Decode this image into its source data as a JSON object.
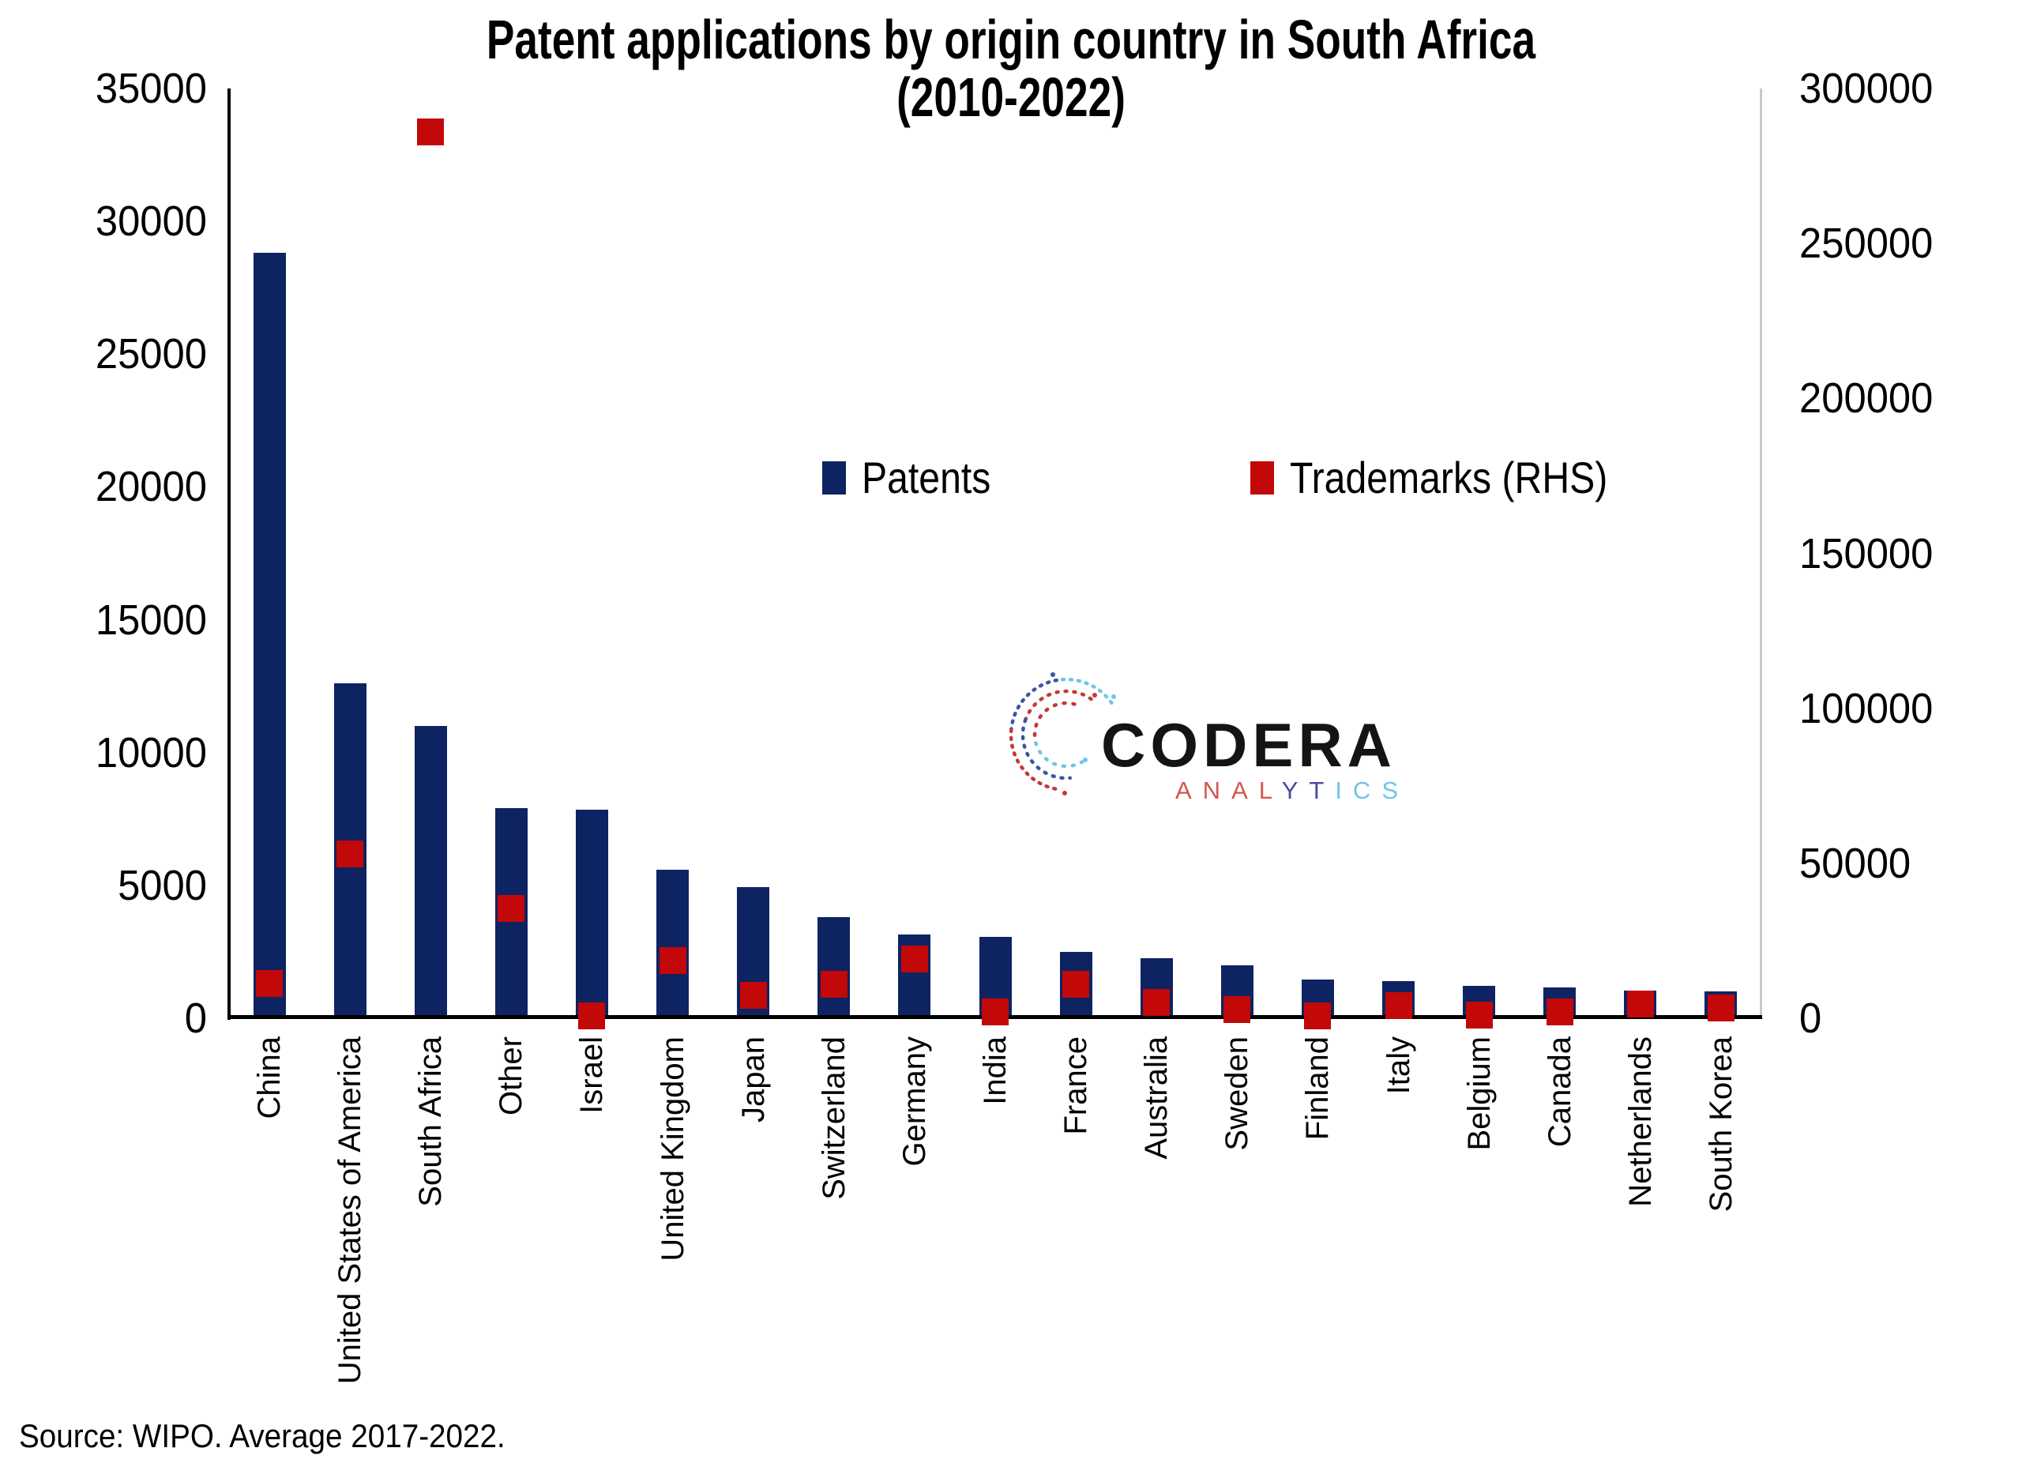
{
  "title": {
    "line1": "Patent applications by origin country in South Africa",
    "line2": "(2010-2022)"
  },
  "legend": {
    "patents_label": "Patents",
    "trademarks_label": "Trademarks (RHS)"
  },
  "source_note": "Source: WIPO. Average 2017-2022.",
  "logo": {
    "name": "CODERA",
    "subtitle_segments": [
      {
        "text": "ANAL",
        "color": "#d4574e"
      },
      {
        "text": "YT",
        "color": "#4549a1"
      },
      {
        "text": "ICS",
        "color": "#6fc5e8"
      }
    ]
  },
  "colors": {
    "patents": "#0e2361",
    "trademarks": "#c20808",
    "axis": "#000000",
    "right_axis_line": "#c9c9c9",
    "text": "#000000"
  },
  "chart_data": {
    "type": "bar",
    "title": "Patent applications by origin country in South Africa (2010-2022)",
    "categories": [
      "China",
      "United States of America",
      "South Africa",
      "Other",
      "Israel",
      "United Kingdom",
      "Japan",
      "Switzerland",
      "Germany",
      "India",
      "France",
      "Australia",
      "Sweden",
      "Finland",
      "Italy",
      "Belgium",
      "Canada",
      "Netherlands",
      "South Korea"
    ],
    "series": [
      {
        "name": "Patents",
        "axis": "left",
        "type": "bar",
        "values": [
          28800,
          12600,
          11000,
          7900,
          7850,
          5600,
          4950,
          3800,
          3150,
          3050,
          2500,
          2250,
          2000,
          1450,
          1400,
          1230,
          1160,
          1030,
          1010
        ]
      },
      {
        "name": "Trademarks (RHS)",
        "axis": "right",
        "type": "square-marker",
        "values": [
          11200,
          53000,
          286000,
          35500,
          700,
          18500,
          7500,
          11000,
          19000,
          2000,
          11000,
          5200,
          2700,
          800,
          4200,
          1100,
          2100,
          4700,
          3200
        ]
      }
    ],
    "left_axis": {
      "range": [
        0,
        35000
      ],
      "ticks": [
        0,
        5000,
        10000,
        15000,
        20000,
        25000,
        30000,
        35000
      ]
    },
    "right_axis": {
      "range": [
        0,
        300000
      ],
      "ticks": [
        0,
        50000,
        100000,
        150000,
        200000,
        250000,
        300000
      ]
    },
    "grid": false,
    "legend_position": "inside-top-center",
    "xlabel": "",
    "ylabel": ""
  }
}
